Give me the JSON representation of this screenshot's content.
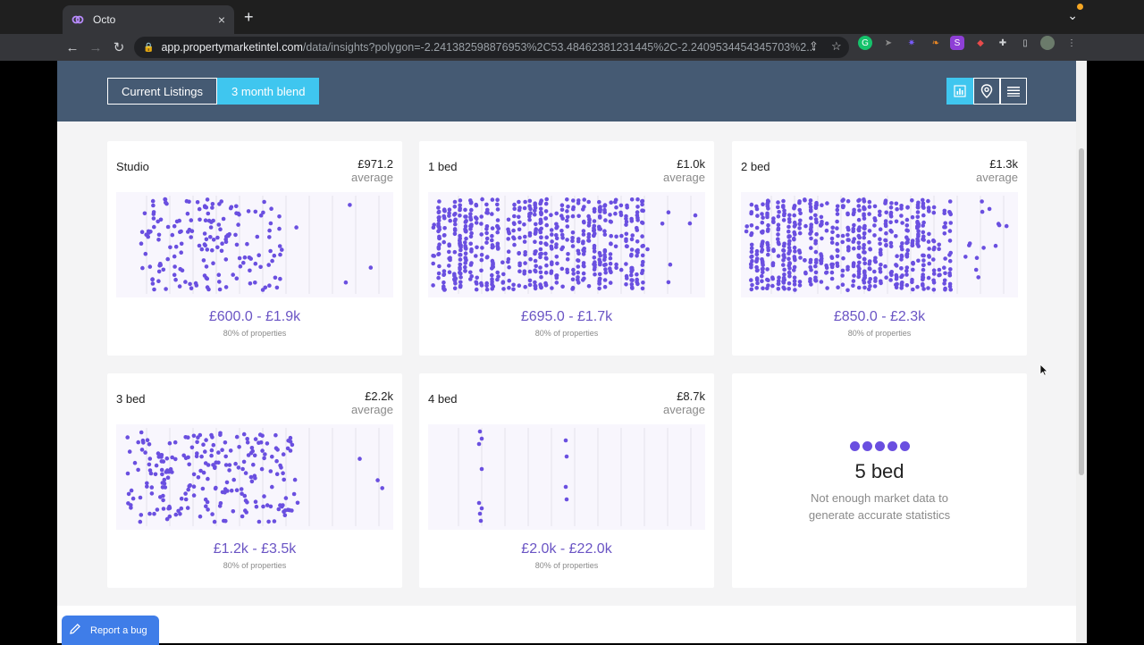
{
  "browser": {
    "tab_title": "Octo",
    "tab_close": "×",
    "new_tab": "+",
    "url_host": "app.propertymarketintel.com",
    "url_path": "/data/insights?polygon=-2.241382598876953%2C53.48462381231445%2C-2.2409534454345703%2..."
  },
  "header": {
    "segments": [
      {
        "label": "Current Listings",
        "active": false
      },
      {
        "label": "3 month blend",
        "active": true
      }
    ],
    "view_icons": [
      "bar-chart-icon",
      "map-pin-icon",
      "list-icon"
    ]
  },
  "cards": [
    {
      "title": "Studio",
      "avg_value": "£971.2",
      "avg_label": "average",
      "range": "£600.0 - £1.9k",
      "range_sub": "80% of properties"
    },
    {
      "title": "1 bed",
      "avg_value": "£1.0k",
      "avg_label": "average",
      "range": "£695.0 - £1.7k",
      "range_sub": "80% of properties"
    },
    {
      "title": "2 bed",
      "avg_value": "£1.3k",
      "avg_label": "average",
      "range": "£850.0 - £2.3k",
      "range_sub": "80% of properties"
    },
    {
      "title": "3 bed",
      "avg_value": "£2.2k",
      "avg_label": "average",
      "range": "£1.2k - £3.5k",
      "range_sub": "80% of properties"
    },
    {
      "title": "4 bed",
      "avg_value": "£8.7k",
      "avg_label": "average",
      "range": "£2.0k - £22.0k",
      "range_sub": "80% of properties"
    }
  ],
  "empty_card": {
    "title": "5 bed",
    "message": "Not enough market data to generate accurate statistics"
  },
  "report_bug": {
    "label": "Report a bug"
  },
  "colors": {
    "header_band": "#455a73",
    "accent": "#3fc6ef",
    "dots": "#6a4fe0",
    "range_text": "#6a54c4",
    "report_button": "#3f7de8"
  }
}
